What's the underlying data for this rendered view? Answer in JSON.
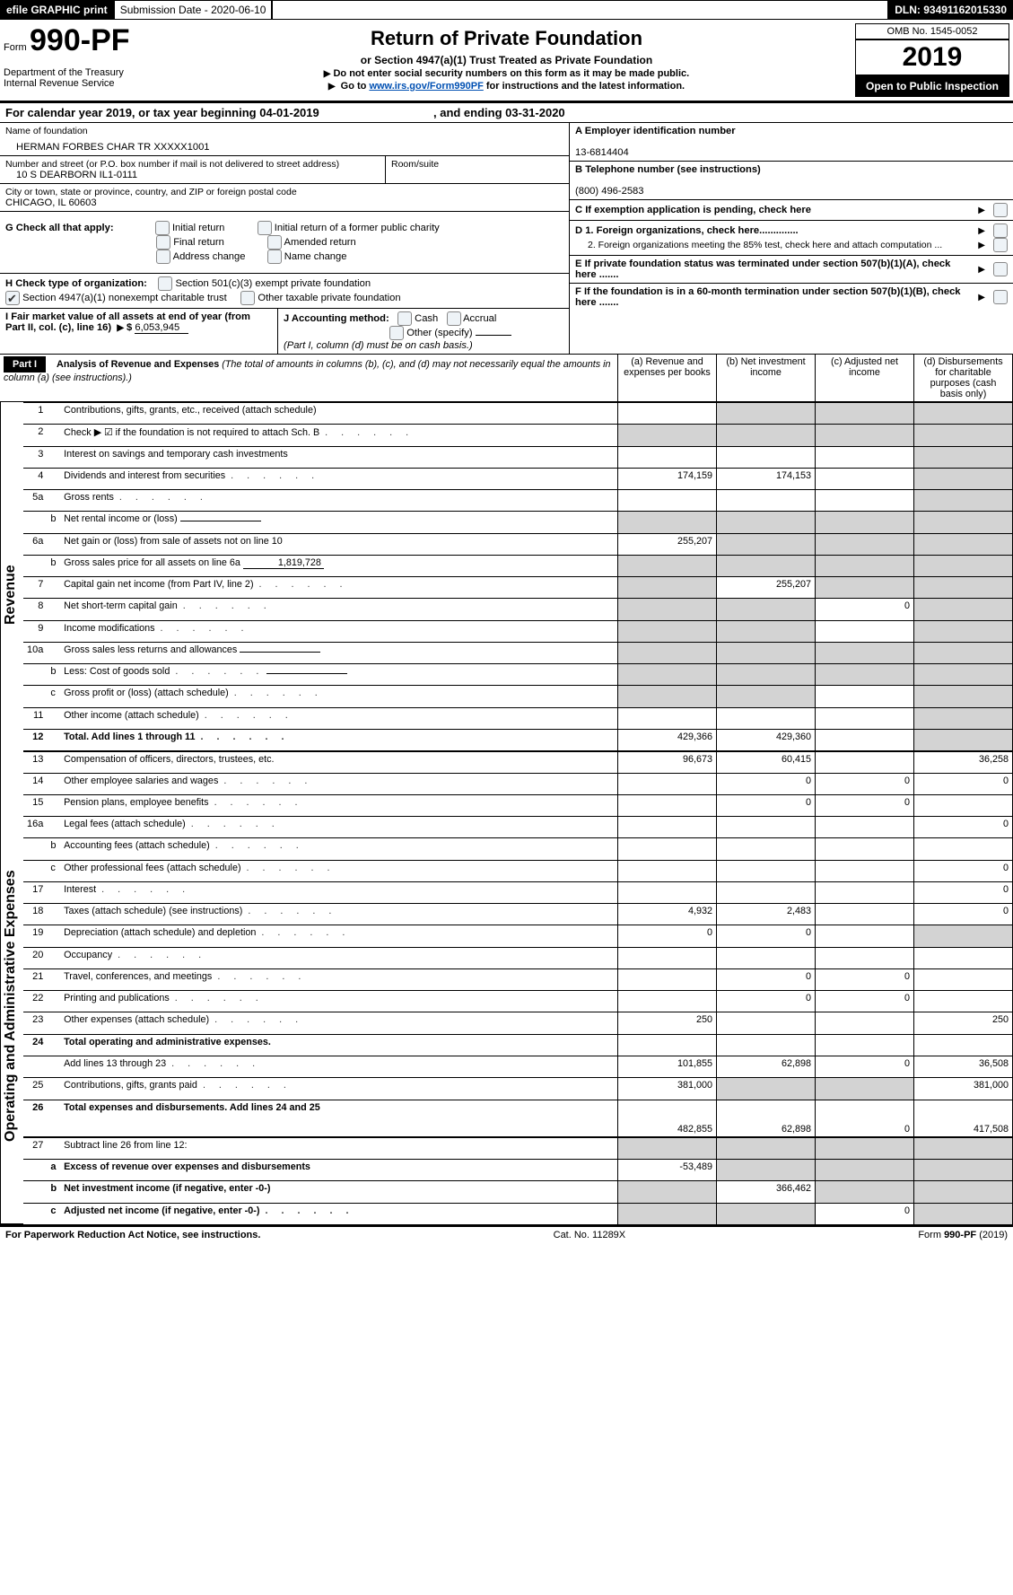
{
  "topbar": {
    "efile": "efile GRAPHIC print",
    "subdate_label": "Submission Date - ",
    "subdate": "2020-06-10",
    "dln_label": "DLN: ",
    "dln": "93491162015330"
  },
  "header": {
    "form_prefix": "Form",
    "form_no": "990-PF",
    "dept1": "Department of the Treasury",
    "dept2": "Internal Revenue Service",
    "title": "Return of Private Foundation",
    "subtitle": "or Section 4947(a)(1) Trust Treated as Private Foundation",
    "warn": "Do not enter social security numbers on this form as it may be made public.",
    "goto_prefix": "Go to ",
    "goto_link": "www.irs.gov/Form990PF",
    "goto_suffix": " for instructions and the latest information.",
    "omb": "OMB No. 1545-0052",
    "year": "2019",
    "open": "Open to Public Inspection"
  },
  "cal_line": {
    "prefix": "For calendar year 2019, or tax year beginning ",
    "begin": "04-01-2019",
    "mid": ", and ending ",
    "end": "03-31-2020"
  },
  "id": {
    "name_label": "Name of foundation",
    "name": "HERMAN FORBES CHAR TR XXXXX1001",
    "street_label": "Number and street (or P.O. box number if mail is not delivered to street address)",
    "street": "10 S DEARBORN IL1-0111",
    "room_label": "Room/suite",
    "city_label": "City or town, state or province, country, and ZIP or foreign postal code",
    "city": "CHICAGO, IL  60603",
    "A_label": "A Employer identification number",
    "A_val": "13-6814404",
    "B_label": "B Telephone number (see instructions)",
    "B_val": "(800) 496-2583",
    "C_label": "C  If exemption application is pending, check here",
    "G_label": "G Check all that apply:",
    "g1": "Initial return",
    "g2": "Initial return of a former public charity",
    "g3": "Final return",
    "g4": "Amended return",
    "g5": "Address change",
    "g6": "Name change",
    "H_label": "H Check type of organization:",
    "h1": "Section 501(c)(3) exempt private foundation",
    "h2": "Section 4947(a)(1) nonexempt charitable trust",
    "h3": "Other taxable private foundation",
    "I_label": "I Fair market value of all assets at end of year (from Part II, col. (c), line 16)",
    "I_prefix": "$",
    "I_val": "6,053,945",
    "J_label": "J Accounting method:",
    "j1": "Cash",
    "j2": "Accrual",
    "j3": "Other (specify)",
    "J_note": "(Part I, column (d) must be on cash basis.)",
    "D1": "D 1. Foreign organizations, check here..............",
    "D2": "2. Foreign organizations meeting the 85% test, check here and attach computation ...",
    "E": "E  If private foundation status was terminated under section 507(b)(1)(A), check here .......",
    "F": "F  If the foundation is in a 60-month termination under section 507(b)(1)(B), check here ......."
  },
  "part1": {
    "label": "Part I",
    "title": "Analysis of Revenue and Expenses",
    "title_note": " (The total of amounts in columns (b), (c), and (d) may not necessarily equal the amounts in column (a) (see instructions).)",
    "cols": {
      "a": "(a)     Revenue and expenses per books",
      "b": "(b)     Net investment income",
      "c": "(c)     Adjusted net income",
      "d": "(d)     Disbursements for charitable purposes (cash basis only)"
    }
  },
  "sections": {
    "rev": "Revenue",
    "exp": "Operating and Administrative Expenses"
  },
  "rows": [
    {
      "sec": "rev",
      "n": "1",
      "s": "",
      "desc": "Contributions, gifts, grants, etc., received (attach schedule)",
      "a": "",
      "b": "",
      "c": "",
      "d": "",
      "shade_b": true,
      "shade_c": true,
      "shade_d": true
    },
    {
      "sec": "rev",
      "n": "2",
      "s": "",
      "desc": "Check ▶ ☑ if the foundation is not required to attach Sch. B",
      "a": "",
      "b": "",
      "c": "",
      "d": "",
      "shade_a": true,
      "shade_b": true,
      "shade_c": true,
      "shade_d": true,
      "dots": true
    },
    {
      "sec": "rev",
      "n": "3",
      "s": "",
      "desc": "Interest on savings and temporary cash investments",
      "a": "",
      "b": "",
      "c": "",
      "d": "",
      "shade_d": true
    },
    {
      "sec": "rev",
      "n": "4",
      "s": "",
      "desc": "Dividends and interest from securities",
      "a": "174,159",
      "b": "174,153",
      "c": "",
      "d": "",
      "shade_d": true,
      "dots": true
    },
    {
      "sec": "rev",
      "n": "5a",
      "s": "",
      "desc": "Gross rents",
      "a": "",
      "b": "",
      "c": "",
      "d": "",
      "shade_d": true,
      "dots": true
    },
    {
      "sec": "rev",
      "n": "",
      "s": "b",
      "desc": "Net rental income or (loss)",
      "a": "",
      "b": "",
      "c": "",
      "d": "",
      "shade_a": true,
      "shade_b": true,
      "shade_c": true,
      "shade_d": true,
      "inline": true
    },
    {
      "sec": "rev",
      "n": "6a",
      "s": "",
      "desc": "Net gain or (loss) from sale of assets not on line 10",
      "a": "255,207",
      "b": "",
      "c": "",
      "d": "",
      "shade_b": true,
      "shade_c": true,
      "shade_d": true
    },
    {
      "sec": "rev",
      "n": "",
      "s": "b",
      "desc": "Gross sales price for all assets on line 6a",
      "a": "",
      "b": "",
      "c": "",
      "d": "",
      "shade_a": true,
      "shade_b": true,
      "shade_c": true,
      "shade_d": true,
      "inline": true,
      "inline_val": "1,819,728"
    },
    {
      "sec": "rev",
      "n": "7",
      "s": "",
      "desc": "Capital gain net income (from Part IV, line 2)",
      "a": "",
      "b": "255,207",
      "c": "",
      "d": "",
      "shade_a": true,
      "shade_c": true,
      "shade_d": true,
      "dots": true
    },
    {
      "sec": "rev",
      "n": "8",
      "s": "",
      "desc": "Net short-term capital gain",
      "a": "",
      "b": "",
      "c": "0",
      "d": "",
      "shade_a": true,
      "shade_b": true,
      "shade_d": true,
      "dots": true
    },
    {
      "sec": "rev",
      "n": "9",
      "s": "",
      "desc": "Income modifications",
      "a": "",
      "b": "",
      "c": "",
      "d": "",
      "shade_a": true,
      "shade_b": true,
      "shade_d": true,
      "dots": true
    },
    {
      "sec": "rev",
      "n": "10a",
      "s": "",
      "desc": "Gross sales less returns and allowances",
      "a": "",
      "b": "",
      "c": "",
      "d": "",
      "shade_a": true,
      "shade_b": true,
      "shade_c": true,
      "shade_d": true,
      "inline": true
    },
    {
      "sec": "rev",
      "n": "",
      "s": "b",
      "desc": "Less: Cost of goods sold",
      "a": "",
      "b": "",
      "c": "",
      "d": "",
      "shade_a": true,
      "shade_b": true,
      "shade_c": true,
      "shade_d": true,
      "dots": true,
      "inline": true
    },
    {
      "sec": "rev",
      "n": "",
      "s": "c",
      "desc": "Gross profit or (loss) (attach schedule)",
      "a": "",
      "b": "",
      "c": "",
      "d": "",
      "shade_a": true,
      "shade_b": true,
      "shade_d": true,
      "dots": true
    },
    {
      "sec": "rev",
      "n": "11",
      "s": "",
      "desc": "Other income (attach schedule)",
      "a": "",
      "b": "",
      "c": "",
      "d": "",
      "shade_d": true,
      "dots": true
    },
    {
      "sec": "rev",
      "n": "12",
      "s": "",
      "desc": "Total. Add lines 1 through 11",
      "a": "429,366",
      "b": "429,360",
      "c": "",
      "d": "",
      "shade_d": true,
      "bold": true,
      "dots": true
    },
    {
      "sec": "exp",
      "n": "13",
      "s": "",
      "desc": "Compensation of officers, directors, trustees, etc.",
      "a": "96,673",
      "b": "60,415",
      "c": "",
      "d": "36,258"
    },
    {
      "sec": "exp",
      "n": "14",
      "s": "",
      "desc": "Other employee salaries and wages",
      "a": "",
      "b": "0",
      "c": "0",
      "d": "0",
      "dots": true
    },
    {
      "sec": "exp",
      "n": "15",
      "s": "",
      "desc": "Pension plans, employee benefits",
      "a": "",
      "b": "0",
      "c": "0",
      "d": "",
      "dots": true
    },
    {
      "sec": "exp",
      "n": "16a",
      "s": "",
      "desc": "Legal fees (attach schedule)",
      "a": "",
      "b": "",
      "c": "",
      "d": "0",
      "dots": true
    },
    {
      "sec": "exp",
      "n": "",
      "s": "b",
      "desc": "Accounting fees (attach schedule)",
      "a": "",
      "b": "",
      "c": "",
      "d": "",
      "dots": true
    },
    {
      "sec": "exp",
      "n": "",
      "s": "c",
      "desc": "Other professional fees (attach schedule)",
      "a": "",
      "b": "",
      "c": "",
      "d": "0",
      "dots": true
    },
    {
      "sec": "exp",
      "n": "17",
      "s": "",
      "desc": "Interest",
      "a": "",
      "b": "",
      "c": "",
      "d": "0",
      "dots": true
    },
    {
      "sec": "exp",
      "n": "18",
      "s": "",
      "desc": "Taxes (attach schedule) (see instructions)",
      "a": "4,932",
      "b": "2,483",
      "c": "",
      "d": "0",
      "dots": true
    },
    {
      "sec": "exp",
      "n": "19",
      "s": "",
      "desc": "Depreciation (attach schedule) and depletion",
      "a": "0",
      "b": "0",
      "c": "",
      "d": "",
      "shade_d": true,
      "dots": true
    },
    {
      "sec": "exp",
      "n": "20",
      "s": "",
      "desc": "Occupancy",
      "a": "",
      "b": "",
      "c": "",
      "d": "",
      "dots": true
    },
    {
      "sec": "exp",
      "n": "21",
      "s": "",
      "desc": "Travel, conferences, and meetings",
      "a": "",
      "b": "0",
      "c": "0",
      "d": "",
      "dots": true
    },
    {
      "sec": "exp",
      "n": "22",
      "s": "",
      "desc": "Printing and publications",
      "a": "",
      "b": "0",
      "c": "0",
      "d": "",
      "dots": true
    },
    {
      "sec": "exp",
      "n": "23",
      "s": "",
      "desc": "Other expenses (attach schedule)",
      "a": "250",
      "b": "",
      "c": "",
      "d": "250",
      "dots": true
    },
    {
      "sec": "exp",
      "n": "24",
      "s": "",
      "desc": "Total operating and administrative expenses.",
      "a": "",
      "b": "",
      "c": "",
      "d": "",
      "bold": true,
      "noborder": true
    },
    {
      "sec": "exp",
      "n": "",
      "s": "",
      "desc": "Add lines 13 through 23",
      "a": "101,855",
      "b": "62,898",
      "c": "0",
      "d": "36,508",
      "dots": true,
      "cont": true
    },
    {
      "sec": "exp",
      "n": "25",
      "s": "",
      "desc": "Contributions, gifts, grants paid",
      "a": "381,000",
      "b": "",
      "c": "",
      "d": "381,000",
      "shade_b": true,
      "shade_c": true,
      "dots": true
    },
    {
      "sec": "exp",
      "n": "26",
      "s": "",
      "desc": "Total expenses and disbursements. Add lines 24 and 25",
      "a": "482,855",
      "b": "62,898",
      "c": "0",
      "d": "417,508",
      "bold": true,
      "tall": true
    },
    {
      "sec": "end",
      "n": "27",
      "s": "",
      "desc": "Subtract line 26 from line 12:",
      "a": "",
      "b": "",
      "c": "",
      "d": "",
      "shade_a": true,
      "shade_b": true,
      "shade_c": true,
      "shade_d": true
    },
    {
      "sec": "end",
      "n": "",
      "s": "a",
      "desc": "Excess of revenue over expenses and disbursements",
      "a": "-53,489",
      "b": "",
      "c": "",
      "d": "",
      "shade_b": true,
      "shade_c": true,
      "shade_d": true,
      "bold": true
    },
    {
      "sec": "end",
      "n": "",
      "s": "b",
      "desc": "Net investment income (if negative, enter -0-)",
      "a": "",
      "b": "366,462",
      "c": "",
      "d": "",
      "shade_a": true,
      "shade_c": true,
      "shade_d": true,
      "bold": true
    },
    {
      "sec": "end",
      "n": "",
      "s": "c",
      "desc": "Adjusted net income (if negative, enter -0-)",
      "a": "",
      "b": "",
      "c": "0",
      "d": "",
      "shade_a": true,
      "shade_b": true,
      "shade_d": true,
      "bold": true,
      "dots": true
    }
  ],
  "footer": {
    "left": "For Paperwork Reduction Act Notice, see instructions.",
    "mid": "Cat. No. 11289X",
    "right": "Form 990-PF (2019)"
  },
  "colors": {
    "shade": "#d3d3d3",
    "link": "#0050b3"
  }
}
